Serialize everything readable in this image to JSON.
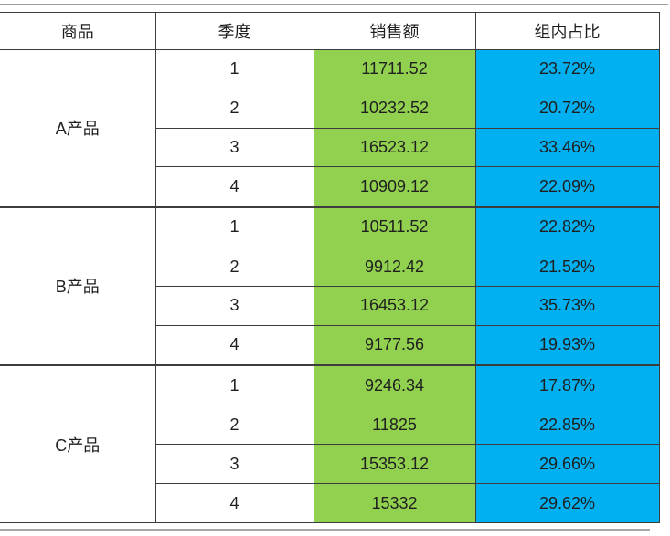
{
  "table": {
    "columns": [
      "商品",
      "季度",
      "销售额",
      "组内占比"
    ],
    "groups": [
      {
        "product": "A产品",
        "rows": [
          {
            "quarter": "1",
            "sales": "11711.52",
            "share": "23.72%"
          },
          {
            "quarter": "2",
            "sales": "10232.52",
            "share": "20.72%"
          },
          {
            "quarter": "3",
            "sales": "16523.12",
            "share": "33.46%"
          },
          {
            "quarter": "4",
            "sales": "10909.12",
            "share": "22.09%"
          }
        ]
      },
      {
        "product": "B产品",
        "rows": [
          {
            "quarter": "1",
            "sales": "10511.52",
            "share": "22.82%"
          },
          {
            "quarter": "2",
            "sales": "9912.42",
            "share": "21.52%"
          },
          {
            "quarter": "3",
            "sales": "16453.12",
            "share": "35.73%"
          },
          {
            "quarter": "4",
            "sales": "9177.56",
            "share": "19.93%"
          }
        ]
      },
      {
        "product": "C产品",
        "rows": [
          {
            "quarter": "1",
            "sales": "9246.34",
            "share": "17.87%"
          },
          {
            "quarter": "2",
            "sales": "11825",
            "share": "22.85%"
          },
          {
            "quarter": "3",
            "sales": "15353.12",
            "share": "29.66%"
          },
          {
            "quarter": "4",
            "sales": "15332",
            "share": "29.62%"
          }
        ]
      }
    ],
    "colors": {
      "sales_bg": "#92D050",
      "share_bg": "#00B0F0",
      "grid_border": "#3d3d3d",
      "outer_rule": "#a6a6a6"
    }
  },
  "chart_data": {
    "type": "table",
    "columns": [
      "商品",
      "季度",
      "销售额",
      "组内占比"
    ],
    "rows": [
      [
        "A产品",
        1,
        11711.52,
        "23.72%"
      ],
      [
        "A产品",
        2,
        10232.52,
        "20.72%"
      ],
      [
        "A产品",
        3,
        16523.12,
        "33.46%"
      ],
      [
        "A产品",
        4,
        10909.12,
        "22.09%"
      ],
      [
        "B产品",
        1,
        10511.52,
        "22.82%"
      ],
      [
        "B产品",
        2,
        9912.42,
        "21.52%"
      ],
      [
        "B产品",
        3,
        16453.12,
        "35.73%"
      ],
      [
        "B产品",
        4,
        9177.56,
        "19.93%"
      ],
      [
        "C产品",
        1,
        9246.34,
        "17.87%"
      ],
      [
        "C产品",
        2,
        11825,
        "22.85%"
      ],
      [
        "C产品",
        3,
        15353.12,
        "29.66%"
      ],
      [
        "C产品",
        4,
        15332,
        "29.62%"
      ]
    ],
    "layout_hints": {
      "merged_first_column_groups": [
        "A产品",
        "B产品",
        "C产品"
      ],
      "sales_column_bg": "#92D050",
      "share_column_bg": "#00B0F0",
      "grid": true
    }
  }
}
